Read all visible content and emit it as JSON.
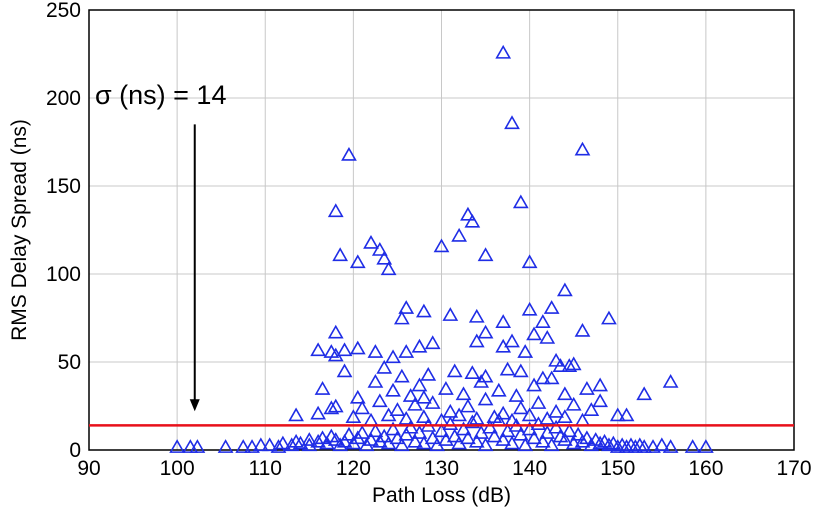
{
  "chart_data": {
    "type": "scatter",
    "title": "",
    "xlabel": "Path Loss (dB)",
    "ylabel": "RMS Delay Spread (ns)",
    "xlim": [
      90,
      170
    ],
    "ylim": [
      0,
      250
    ],
    "xticks": [
      90,
      100,
      110,
      120,
      130,
      140,
      150,
      160,
      170
    ],
    "yticks": [
      0,
      50,
      100,
      150,
      200,
      250
    ],
    "grid": true,
    "marker": "triangle-open",
    "marker_color": "#1f2de6",
    "reference_line": {
      "y": 14,
      "color": "#e8101a"
    },
    "annotation": {
      "text": "σ (ns) = 14",
      "arrow_x": 102,
      "arrow_y_from": 185,
      "arrow_y_to": 22
    },
    "points": [
      [
        100,
        1
      ],
      [
        101.5,
        1
      ],
      [
        102.3,
        1
      ],
      [
        105.5,
        1
      ],
      [
        107.5,
        1
      ],
      [
        108.5,
        1
      ],
      [
        109.5,
        2
      ],
      [
        110.5,
        2
      ],
      [
        111.5,
        1
      ],
      [
        112,
        3
      ],
      [
        113,
        2
      ],
      [
        113.5,
        4
      ],
      [
        114,
        3
      ],
      [
        115,
        2
      ],
      [
        115,
        5
      ],
      [
        116,
        4
      ],
      [
        116.5,
        6
      ],
      [
        117,
        3
      ],
      [
        117.5,
        7
      ],
      [
        118,
        5
      ],
      [
        118.5,
        2
      ],
      [
        119,
        4
      ],
      [
        119.5,
        8
      ],
      [
        120,
        3
      ],
      [
        120.5,
        6
      ],
      [
        121,
        9
      ],
      [
        121.5,
        2
      ],
      [
        122,
        5
      ],
      [
        122.5,
        10
      ],
      [
        123,
        4
      ],
      [
        123.5,
        7
      ],
      [
        124,
        3
      ],
      [
        124.5,
        11
      ],
      [
        125,
        6
      ],
      [
        125.5,
        2
      ],
      [
        126,
        8
      ],
      [
        126.5,
        12
      ],
      [
        127,
        4
      ],
      [
        127.5,
        9
      ],
      [
        128,
        3
      ],
      [
        128.5,
        13
      ],
      [
        129,
        6
      ],
      [
        129.5,
        2
      ],
      [
        130,
        10
      ],
      [
        130.5,
        5
      ],
      [
        131,
        14
      ],
      [
        131.5,
        7
      ],
      [
        132,
        3
      ],
      [
        132.5,
        11
      ],
      [
        133,
        6
      ],
      [
        133.5,
        15
      ],
      [
        134,
        4
      ],
      [
        134.5,
        9
      ],
      [
        135,
        2
      ],
      [
        135.5,
        12
      ],
      [
        136,
        7
      ],
      [
        136.5,
        16
      ],
      [
        137,
        5
      ],
      [
        137.5,
        10
      ],
      [
        138,
        3
      ],
      [
        138.5,
        13
      ],
      [
        139,
        8
      ],
      [
        139.5,
        2
      ],
      [
        140,
        11
      ],
      [
        140.5,
        6
      ],
      [
        141,
        14
      ],
      [
        141.5,
        4
      ],
      [
        142,
        9
      ],
      [
        142.5,
        2
      ],
      [
        143,
        12
      ],
      [
        143.5,
        7
      ],
      [
        144,
        5
      ],
      [
        144.5,
        10
      ],
      [
        145,
        3
      ],
      [
        145.5,
        8
      ],
      [
        146,
        4
      ],
      [
        146.5,
        6
      ],
      [
        147,
        2
      ],
      [
        147.5,
        5
      ],
      [
        148,
        3
      ],
      [
        148.5,
        4
      ],
      [
        149,
        2
      ],
      [
        149.5,
        3
      ],
      [
        150,
        1
      ],
      [
        150.5,
        2
      ],
      [
        151,
        1
      ],
      [
        151.5,
        2
      ],
      [
        152,
        1
      ],
      [
        152.5,
        2
      ],
      [
        153,
        1
      ],
      [
        154,
        1
      ],
      [
        155,
        2
      ],
      [
        156,
        1
      ],
      [
        158.5,
        1
      ],
      [
        160,
        1
      ],
      [
        120,
        18
      ],
      [
        122,
        16
      ],
      [
        124,
        19
      ],
      [
        126,
        17
      ],
      [
        128,
        18
      ],
      [
        130,
        16
      ],
      [
        132,
        19
      ],
      [
        134,
        17
      ],
      [
        136,
        18
      ],
      [
        138,
        16
      ],
      [
        140,
        19
      ],
      [
        142,
        17
      ],
      [
        144,
        18
      ],
      [
        146,
        16
      ],
      [
        113.5,
        19
      ],
      [
        116,
        20
      ],
      [
        150,
        19
      ],
      [
        125,
        22
      ],
      [
        131,
        21
      ],
      [
        137,
        20
      ],
      [
        143,
        21
      ],
      [
        147,
        22
      ],
      [
        118,
        24
      ],
      [
        121,
        23
      ],
      [
        127,
        25
      ],
      [
        133,
        24
      ],
      [
        139,
        23
      ],
      [
        145,
        25
      ],
      [
        123,
        27
      ],
      [
        129,
        26
      ],
      [
        135,
        28
      ],
      [
        141,
        26
      ],
      [
        148,
        27
      ],
      [
        116.5,
        34
      ],
      [
        120.5,
        29
      ],
      [
        126.5,
        30
      ],
      [
        128,
        29
      ],
      [
        132.5,
        31
      ],
      [
        138.5,
        30
      ],
      [
        144,
        31
      ],
      [
        117.5,
        23
      ],
      [
        122.5,
        38
      ],
      [
        124.5,
        33
      ],
      [
        127.5,
        36
      ],
      [
        130.5,
        34
      ],
      [
        134.5,
        38
      ],
      [
        136.5,
        33
      ],
      [
        140.5,
        36
      ],
      [
        142.5,
        40
      ],
      [
        146.5,
        34
      ],
      [
        119,
        44
      ],
      [
        123.5,
        46
      ],
      [
        125.5,
        41
      ],
      [
        128.5,
        42
      ],
      [
        131.5,
        44
      ],
      [
        133.5,
        43
      ],
      [
        135,
        41
      ],
      [
        137.5,
        45
      ],
      [
        139,
        44
      ],
      [
        141.5,
        40
      ],
      [
        143.5,
        47
      ],
      [
        145,
        48
      ],
      [
        148,
        36
      ],
      [
        153,
        31
      ],
      [
        156,
        38
      ],
      [
        116,
        56
      ],
      [
        118,
        53
      ],
      [
        119,
        56
      ],
      [
        120.5,
        57
      ],
      [
        122.5,
        55
      ],
      [
        124.5,
        52
      ],
      [
        126,
        55
      ],
      [
        127.5,
        58
      ],
      [
        129,
        60
      ],
      [
        134,
        61
      ],
      [
        137,
        58
      ],
      [
        139.5,
        55
      ],
      [
        142,
        63
      ],
      [
        143,
        50
      ],
      [
        144.5,
        47
      ],
      [
        118,
        66
      ],
      [
        125.5,
        74
      ],
      [
        131,
        76
      ],
      [
        135,
        66
      ],
      [
        137,
        72
      ],
      [
        140.5,
        65
      ],
      [
        141.5,
        72
      ],
      [
        140,
        79
      ],
      [
        142.5,
        80
      ],
      [
        146,
        67
      ],
      [
        149,
        74
      ],
      [
        126,
        80
      ],
      [
        128,
        78
      ],
      [
        134,
        75
      ],
      [
        138,
        61
      ],
      [
        144,
        90
      ],
      [
        118,
        135
      ],
      [
        117.5,
        55
      ],
      [
        118.5,
        110
      ],
      [
        119.5,
        167
      ],
      [
        120.5,
        106
      ],
      [
        122,
        117
      ],
      [
        123,
        113
      ],
      [
        123.5,
        108
      ],
      [
        124,
        102
      ],
      [
        130,
        115
      ],
      [
        132,
        121
      ],
      [
        133,
        133
      ],
      [
        133.5,
        129
      ],
      [
        135,
        110
      ],
      [
        137,
        225
      ],
      [
        138,
        185
      ],
      [
        139,
        140
      ],
      [
        140,
        106
      ],
      [
        146,
        170
      ],
      [
        151,
        19
      ]
    ]
  }
}
